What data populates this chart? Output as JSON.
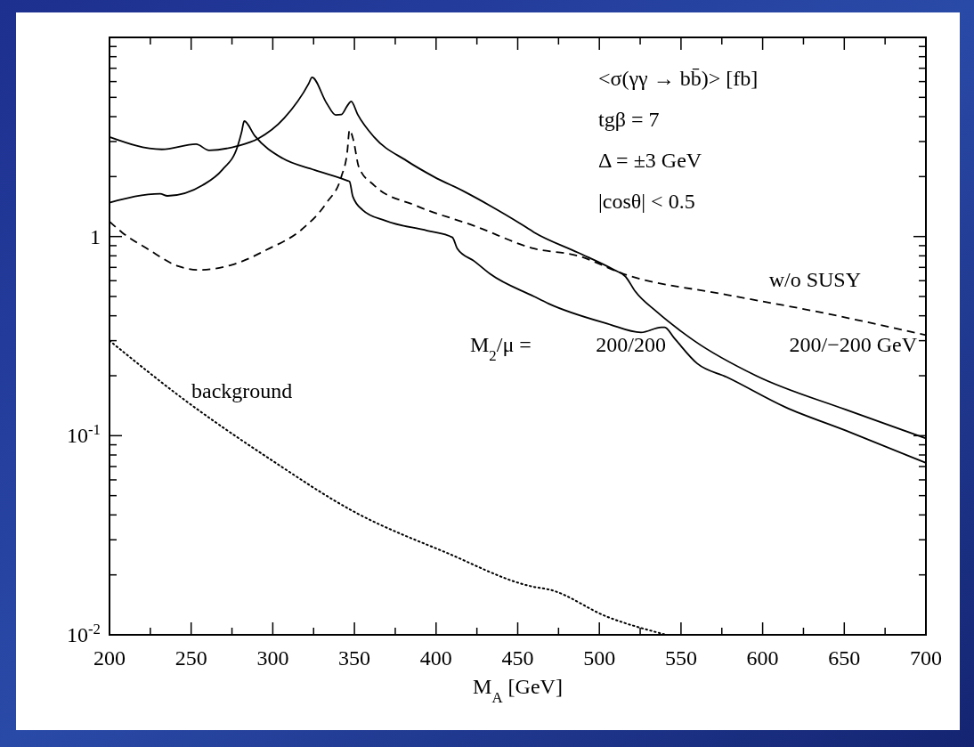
{
  "chart_data": {
    "type": "line",
    "xlabel": "M$_{A}$ [GeV]",
    "log": "y",
    "xlim": [
      200,
      700
    ],
    "ylim": [
      0.01,
      10
    ],
    "xticks": [
      200,
      {
        "value": 225,
        "label": null
      },
      250,
      {
        "value": 275,
        "label": null
      },
      300,
      {
        "value": 325,
        "label": null
      },
      350,
      {
        "value": 375,
        "label": null
      },
      400,
      {
        "value": 425,
        "label": null
      },
      450,
      {
        "value": 475,
        "label": null
      },
      500,
      {
        "value": 525,
        "label": null
      },
      550,
      {
        "value": 575,
        "label": null
      },
      600,
      {
        "value": 625,
        "label": null
      },
      650,
      {
        "value": 675,
        "label": null
      },
      700
    ],
    "yticks": [
      {
        "value": 0.01,
        "label": "10$^{-2}$"
      },
      {
        "value": 0.02,
        "label": null
      },
      {
        "value": 0.03,
        "label": null
      },
      {
        "value": 0.04,
        "label": null
      },
      {
        "value": 0.05,
        "label": null
      },
      {
        "value": 0.06,
        "label": null
      },
      {
        "value": 0.07,
        "label": null
      },
      {
        "value": 0.08,
        "label": null
      },
      {
        "value": 0.09,
        "label": null
      },
      {
        "value": 0.1,
        "label": "10$^{-1}$"
      },
      {
        "value": 0.2,
        "label": null
      },
      {
        "value": 0.3,
        "label": null
      },
      {
        "value": 0.4,
        "label": null
      },
      {
        "value": 0.5,
        "label": null
      },
      {
        "value": 0.6,
        "label": null
      },
      {
        "value": 0.7,
        "label": null
      },
      {
        "value": 0.8,
        "label": null
      },
      {
        "value": 0.9,
        "label": null
      },
      1,
      {
        "value": 2,
        "label": null
      },
      {
        "value": 3,
        "label": null
      },
      {
        "value": 4,
        "label": null
      },
      {
        "value": 5,
        "label": null
      },
      {
        "value": 6,
        "label": null
      },
      {
        "value": 7,
        "label": null
      },
      {
        "value": 8,
        "label": null
      },
      {
        "value": 9,
        "label": null
      },
      {
        "value": 10,
        "label": null
      }
    ],
    "annotations": [
      "<σ(γγ → bb̄)> [fb]",
      "tgβ = 7",
      "Δ = ±3 GeV",
      "|cosθ| < 0.5",
      "M$_{2}$/μ ="
    ],
    "series": [
      {
        "name": "200/−200 GeV",
        "color": "#000000",
        "line_style": "solid",
        "x": [
          200,
          232,
          253,
          261,
          278.5,
          291,
          307,
          322,
          324,
          333,
          338.5,
          342,
          345.6,
          348,
          352,
          362,
          382,
          398.5,
          418,
          433,
          451,
          460,
          487,
          509,
          516,
          522,
          535,
          551,
          558,
          596,
          651,
          700
        ],
        "values": [
          3.16,
          2.74,
          2.91,
          2.71,
          2.85,
          3.1,
          3.93,
          5.86,
          6.3,
          4.67,
          4.08,
          4.1,
          4.53,
          4.77,
          4.1,
          3.16,
          2.4,
          2.0,
          1.67,
          1.43,
          1.17,
          1.05,
          0.83,
          0.68,
          0.63,
          0.53,
          0.42,
          0.33,
          0.3,
          0.2,
          0.135,
          0.097
        ]
      },
      {
        "name": "200/200",
        "color": "#000000",
        "line_style": "solid",
        "x": [
          200,
          231,
          235.5,
          257,
          269,
          278.5,
          281,
          282.5,
          289,
          306,
          325.5,
          345.6,
          347,
          349,
          355,
          369,
          394.6,
          410,
          413,
          423.6,
          433,
          460,
          469,
          505,
          525.5,
          538,
          540,
          545.7,
          560,
          578,
          614,
          651,
          700
        ],
        "values": [
          1.48,
          1.64,
          1.6,
          1.81,
          2.16,
          2.85,
          3.37,
          3.8,
          3.2,
          2.47,
          2.16,
          1.91,
          1.89,
          1.59,
          1.36,
          1.2,
          1.07,
          0.99,
          0.87,
          0.75,
          0.65,
          0.5,
          0.46,
          0.365,
          0.33,
          0.35,
          0.35,
          0.31,
          0.23,
          0.197,
          0.139,
          0.106,
          0.073
        ]
      },
      {
        "name": "w/o SUSY",
        "color": "#000000",
        "line_style": "dashed",
        "x": [
          200,
          207.6,
          224,
          242,
          254.5,
          274.7,
          296.5,
          318,
          333,
          342,
          345.6,
          347,
          349.4,
          352.7,
          362,
          387.6,
          423.6,
          460,
          487,
          514.6,
          578,
          633,
          700
        ],
        "values": [
          1.19,
          1.05,
          0.86,
          0.71,
          0.68,
          0.72,
          0.86,
          1.09,
          1.48,
          2.0,
          2.66,
          3.43,
          3.04,
          2.23,
          1.81,
          1.43,
          1.13,
          0.87,
          0.8,
          0.65,
          0.51,
          0.42,
          0.32
        ]
      },
      {
        "name": "background",
        "color": "#000000",
        "line_style": "dotted",
        "x": [
          200,
          247,
          296.5,
          351,
          405.6,
          460,
          469,
          505,
          541
        ],
        "values": [
          0.3,
          0.149,
          0.078,
          0.041,
          0.026,
          0.0174,
          0.0169,
          0.0123,
          0.01
        ]
      }
    ]
  }
}
